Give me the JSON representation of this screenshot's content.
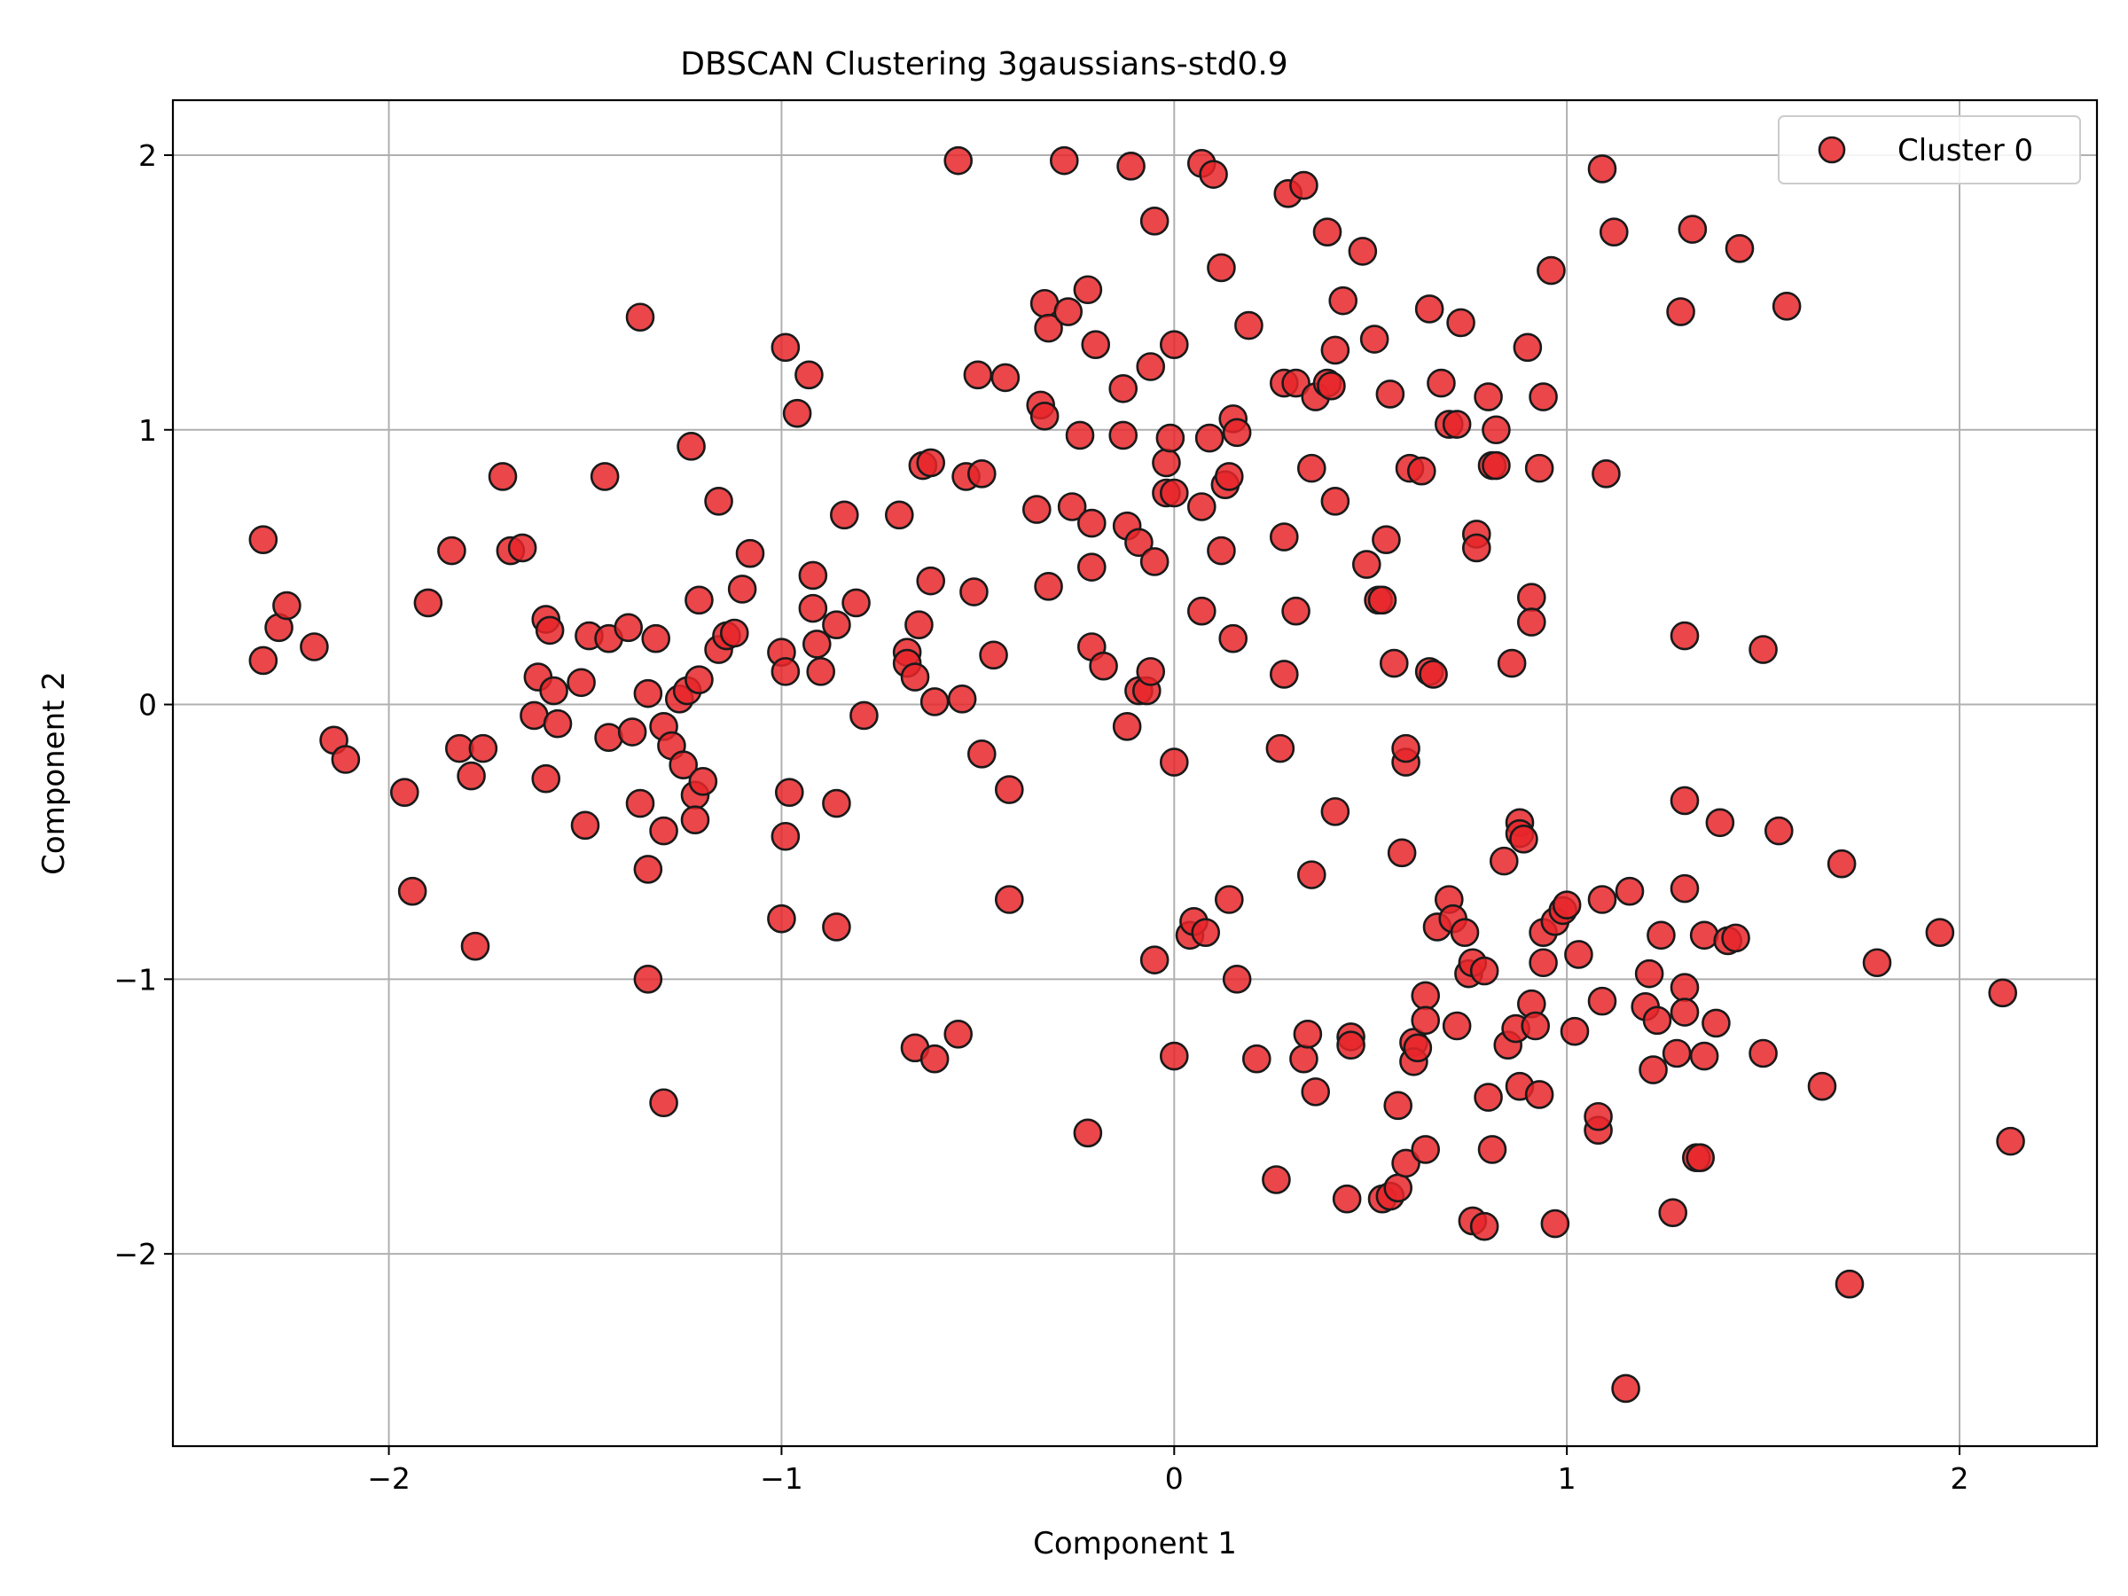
{
  "chart_data": {
    "type": "scatter",
    "title": "DBSCAN Clustering 3gaussians-std0.9",
    "xlabel": "Component 1",
    "ylabel": "Component 2",
    "xlim": [
      -2.55,
      2.35
    ],
    "ylim": [
      -2.7,
      2.2
    ],
    "xticks": [
      -2,
      -1,
      0,
      1,
      2
    ],
    "yticks": [
      -2,
      -1,
      0,
      1,
      2
    ],
    "grid": true,
    "legend_position": "top-right",
    "marker_color": "#e8262a",
    "marker_edge_color": "#1a1a1a",
    "series": [
      {
        "name": "Cluster 0",
        "points": [
          [
            -2.32,
            0.6
          ],
          [
            -2.32,
            0.16
          ],
          [
            -2.28,
            0.28
          ],
          [
            -2.26,
            0.36
          ],
          [
            -2.19,
            0.21
          ],
          [
            -2.14,
            -0.13
          ],
          [
            -2.11,
            -0.2
          ],
          [
            -1.96,
            -0.32
          ],
          [
            -1.94,
            -0.68
          ],
          [
            -1.9,
            0.37
          ],
          [
            -1.84,
            0.56
          ],
          [
            -1.82,
            -0.16
          ],
          [
            -1.79,
            -0.26
          ],
          [
            -1.78,
            -0.88
          ],
          [
            -1.76,
            -0.16
          ],
          [
            -1.71,
            0.83
          ],
          [
            -1.69,
            0.56
          ],
          [
            -1.66,
            0.57
          ],
          [
            -1.63,
            -0.04
          ],
          [
            -1.62,
            0.1
          ],
          [
            -1.6,
            0.31
          ],
          [
            -1.6,
            -0.27
          ],
          [
            -1.59,
            0.27
          ],
          [
            -1.58,
            0.05
          ],
          [
            -1.57,
            -0.07
          ],
          [
            -1.51,
            0.08
          ],
          [
            -1.49,
            0.25
          ],
          [
            -1.5,
            -0.44
          ],
          [
            -1.45,
            0.83
          ],
          [
            -1.44,
            0.24
          ],
          [
            -1.44,
            -0.12
          ],
          [
            -1.39,
            0.28
          ],
          [
            -1.38,
            -0.1
          ],
          [
            -1.36,
            -0.36
          ],
          [
            -1.36,
            1.41
          ],
          [
            -1.34,
            0.04
          ],
          [
            -1.34,
            -0.6
          ],
          [
            -1.34,
            -1.0
          ],
          [
            -1.32,
            0.24
          ],
          [
            -1.3,
            -0.46
          ],
          [
            -1.3,
            -0.08
          ],
          [
            -1.28,
            -0.15
          ],
          [
            -1.3,
            -1.45
          ],
          [
            -1.26,
            0.02
          ],
          [
            -1.24,
            0.05
          ],
          [
            -1.25,
            -0.22
          ],
          [
            -1.22,
            -0.33
          ],
          [
            -1.21,
            0.38
          ],
          [
            -1.21,
            0.09
          ],
          [
            -1.22,
            -0.42
          ],
          [
            -1.23,
            0.94
          ],
          [
            -1.2,
            -0.28
          ],
          [
            -1.16,
            0.2
          ],
          [
            -1.16,
            0.74
          ],
          [
            -1.14,
            0.25
          ],
          [
            -1.12,
            0.26
          ],
          [
            -1.1,
            0.42
          ],
          [
            -1.08,
            0.55
          ],
          [
            -1.0,
            0.19
          ],
          [
            -0.99,
            0.12
          ],
          [
            -0.99,
            -0.48
          ],
          [
            -0.98,
            -0.32
          ],
          [
            -0.99,
            1.3
          ],
          [
            -1.0,
            -0.78
          ],
          [
            -0.96,
            1.06
          ],
          [
            -0.93,
            1.2
          ],
          [
            -0.92,
            0.47
          ],
          [
            -0.92,
            0.35
          ],
          [
            -0.91,
            0.22
          ],
          [
            -0.9,
            0.12
          ],
          [
            -0.86,
            0.29
          ],
          [
            -0.86,
            -0.36
          ],
          [
            -0.86,
            -0.81
          ],
          [
            -0.84,
            0.69
          ],
          [
            -0.81,
            0.37
          ],
          [
            -0.79,
            -0.04
          ],
          [
            -0.7,
            0.69
          ],
          [
            -0.68,
            0.19
          ],
          [
            -0.68,
            0.15
          ],
          [
            -0.66,
            0.1
          ],
          [
            -0.65,
            0.29
          ],
          [
            -0.66,
            -1.25
          ],
          [
            -0.64,
            0.87
          ],
          [
            -0.62,
            0.88
          ],
          [
            -0.62,
            0.45
          ],
          [
            -0.61,
            0.01
          ],
          [
            -0.61,
            -1.29
          ],
          [
            -0.55,
            1.98
          ],
          [
            -0.55,
            -1.2
          ],
          [
            -0.54,
            0.02
          ],
          [
            -0.53,
            0.83
          ],
          [
            -0.51,
            0.41
          ],
          [
            -0.5,
            1.2
          ],
          [
            -0.49,
            0.84
          ],
          [
            -0.49,
            -0.18
          ],
          [
            -0.46,
            0.18
          ],
          [
            -0.43,
            1.19
          ],
          [
            -0.42,
            -0.31
          ],
          [
            -0.42,
            -0.71
          ],
          [
            -0.35,
            0.71
          ],
          [
            -0.34,
            1.09
          ],
          [
            -0.33,
            1.46
          ],
          [
            -0.33,
            1.05
          ],
          [
            -0.32,
            1.37
          ],
          [
            -0.32,
            0.43
          ],
          [
            -0.28,
            1.98
          ],
          [
            -0.27,
            1.43
          ],
          [
            -0.26,
            0.72
          ],
          [
            -0.24,
            0.98
          ],
          [
            -0.22,
            1.51
          ],
          [
            -0.21,
            0.66
          ],
          [
            -0.21,
            0.5
          ],
          [
            -0.21,
            0.21
          ],
          [
            -0.2,
            1.31
          ],
          [
            -0.22,
            -1.56
          ],
          [
            -0.18,
            0.14
          ],
          [
            -0.13,
            1.15
          ],
          [
            -0.13,
            0.98
          ],
          [
            -0.12,
            0.65
          ],
          [
            -0.12,
            -0.08
          ],
          [
            -0.11,
            1.96
          ],
          [
            -0.09,
            0.59
          ],
          [
            -0.09,
            0.05
          ],
          [
            -0.07,
            0.05
          ],
          [
            -0.06,
            1.23
          ],
          [
            -0.06,
            0.12
          ],
          [
            -0.05,
            0.52
          ],
          [
            -0.05,
            1.76
          ],
          [
            -0.05,
            -0.93
          ],
          [
            -0.02,
            0.88
          ],
          [
            -0.02,
            0.77
          ],
          [
            -0.01,
            0.97
          ],
          [
            0.0,
            1.31
          ],
          [
            0.0,
            0.77
          ],
          [
            0.0,
            -0.21
          ],
          [
            0.0,
            -1.28
          ],
          [
            0.04,
            -0.84
          ],
          [
            0.05,
            -0.79
          ],
          [
            0.07,
            0.34
          ],
          [
            0.07,
            0.72
          ],
          [
            0.07,
            1.97
          ],
          [
            0.08,
            -0.83
          ],
          [
            0.09,
            0.97
          ],
          [
            0.1,
            1.93
          ],
          [
            0.12,
            0.56
          ],
          [
            0.12,
            1.59
          ],
          [
            0.13,
            0.8
          ],
          [
            0.14,
            0.83
          ],
          [
            0.14,
            -0.71
          ],
          [
            0.15,
            0.24
          ],
          [
            0.15,
            1.04
          ],
          [
            0.16,
            0.99
          ],
          [
            0.16,
            -1.0
          ],
          [
            0.19,
            1.38
          ],
          [
            0.21,
            -1.29
          ],
          [
            0.26,
            -1.73
          ],
          [
            0.27,
            -0.16
          ],
          [
            0.28,
            1.17
          ],
          [
            0.28,
            0.61
          ],
          [
            0.28,
            0.11
          ],
          [
            0.29,
            1.86
          ],
          [
            0.31,
            0.34
          ],
          [
            0.31,
            1.17
          ],
          [
            0.33,
            1.89
          ],
          [
            0.33,
            -1.29
          ],
          [
            0.34,
            -1.2
          ],
          [
            0.35,
            0.86
          ],
          [
            0.35,
            -0.62
          ],
          [
            0.36,
            1.12
          ],
          [
            0.36,
            -1.41
          ],
          [
            0.39,
            1.72
          ],
          [
            0.39,
            1.17
          ],
          [
            0.41,
            1.29
          ],
          [
            0.4,
            1.16
          ],
          [
            0.41,
            0.74
          ],
          [
            0.41,
            -0.39
          ],
          [
            0.43,
            1.47
          ],
          [
            0.44,
            -1.8
          ],
          [
            0.45,
            -1.21
          ],
          [
            0.45,
            -1.24
          ],
          [
            0.48,
            1.65
          ],
          [
            0.49,
            0.51
          ],
          [
            0.51,
            1.33
          ],
          [
            0.52,
            0.38
          ],
          [
            0.53,
            -1.8
          ],
          [
            0.53,
            0.38
          ],
          [
            0.54,
            0.6
          ],
          [
            0.55,
            1.13
          ],
          [
            0.55,
            -1.79
          ],
          [
            0.56,
            0.15
          ],
          [
            0.57,
            -1.46
          ],
          [
            0.57,
            -1.76
          ],
          [
            0.58,
            -0.54
          ],
          [
            0.59,
            -0.21
          ],
          [
            0.59,
            -0.16
          ],
          [
            0.59,
            -1.67
          ],
          [
            0.6,
            0.86
          ],
          [
            0.61,
            -1.23
          ],
          [
            0.61,
            -1.3
          ],
          [
            0.62,
            -1.25
          ],
          [
            0.63,
            0.85
          ],
          [
            0.64,
            -1.06
          ],
          [
            0.64,
            -1.15
          ],
          [
            0.64,
            -1.62
          ],
          [
            0.65,
            1.44
          ],
          [
            0.65,
            0.12
          ],
          [
            0.66,
            0.11
          ],
          [
            0.67,
            -0.81
          ],
          [
            0.68,
            1.17
          ],
          [
            0.7,
            -0.71
          ],
          [
            0.7,
            1.02
          ],
          [
            0.71,
            -0.78
          ],
          [
            0.72,
            1.02
          ],
          [
            0.72,
            -1.17
          ],
          [
            0.73,
            1.39
          ],
          [
            0.74,
            -0.83
          ],
          [
            0.75,
            -0.98
          ],
          [
            0.76,
            -0.94
          ],
          [
            0.76,
            -1.88
          ],
          [
            0.77,
            0.62
          ],
          [
            0.77,
            0.57
          ],
          [
            0.79,
            -0.97
          ],
          [
            0.79,
            -1.9
          ],
          [
            0.8,
            1.12
          ],
          [
            0.8,
            -1.43
          ],
          [
            0.81,
            -1.62
          ],
          [
            0.81,
            0.87
          ],
          [
            0.82,
            0.87
          ],
          [
            0.82,
            1.0
          ],
          [
            0.84,
            -0.57
          ],
          [
            0.85,
            -1.24
          ],
          [
            0.86,
            0.15
          ],
          [
            0.87,
            -1.18
          ],
          [
            0.88,
            -0.43
          ],
          [
            0.88,
            -0.47
          ],
          [
            0.88,
            -1.39
          ],
          [
            0.89,
            -0.49
          ],
          [
            0.9,
            1.3
          ],
          [
            0.91,
            0.39
          ],
          [
            0.91,
            0.3
          ],
          [
            0.91,
            -1.09
          ],
          [
            0.92,
            -1.17
          ],
          [
            0.93,
            -1.42
          ],
          [
            0.94,
            -0.94
          ],
          [
            0.94,
            -0.83
          ],
          [
            0.93,
            0.86
          ],
          [
            0.94,
            1.12
          ],
          [
            0.96,
            1.58
          ],
          [
            0.97,
            -1.89
          ],
          [
            0.97,
            -0.79
          ],
          [
            0.99,
            -0.75
          ],
          [
            1.0,
            -0.73
          ],
          [
            1.02,
            -1.19
          ],
          [
            1.03,
            -0.91
          ],
          [
            1.08,
            -1.55
          ],
          [
            1.08,
            -1.5
          ],
          [
            1.09,
            -1.08
          ],
          [
            1.09,
            1.95
          ],
          [
            1.09,
            -0.71
          ],
          [
            1.1,
            0.84
          ],
          [
            1.12,
            1.72
          ],
          [
            1.15,
            -2.49
          ],
          [
            1.16,
            -0.68
          ],
          [
            1.2,
            -1.1
          ],
          [
            1.21,
            -0.98
          ],
          [
            1.22,
            -1.33
          ],
          [
            1.23,
            -1.15
          ],
          [
            1.24,
            -0.84
          ],
          [
            1.27,
            -1.85
          ],
          [
            1.28,
            -1.27
          ],
          [
            1.29,
            1.43
          ],
          [
            1.3,
            0.25
          ],
          [
            1.3,
            -0.35
          ],
          [
            1.3,
            -0.67
          ],
          [
            1.3,
            -1.03
          ],
          [
            1.3,
            -1.12
          ],
          [
            1.32,
            1.73
          ],
          [
            1.33,
            -1.65
          ],
          [
            1.34,
            -1.65
          ],
          [
            1.35,
            -0.84
          ],
          [
            1.35,
            -1.28
          ],
          [
            1.38,
            -1.16
          ],
          [
            1.39,
            -0.43
          ],
          [
            1.41,
            -0.86
          ],
          [
            1.43,
            -0.85
          ],
          [
            1.44,
            1.66
          ],
          [
            1.5,
            0.2
          ],
          [
            1.5,
            -1.27
          ],
          [
            1.54,
            -0.46
          ],
          [
            1.56,
            1.45
          ],
          [
            1.65,
            -1.39
          ],
          [
            1.7,
            -0.58
          ],
          [
            1.72,
            -2.11
          ],
          [
            1.79,
            -0.94
          ],
          [
            1.95,
            -0.83
          ],
          [
            2.11,
            -1.05
          ],
          [
            2.13,
            -1.59
          ]
        ]
      }
    ]
  }
}
